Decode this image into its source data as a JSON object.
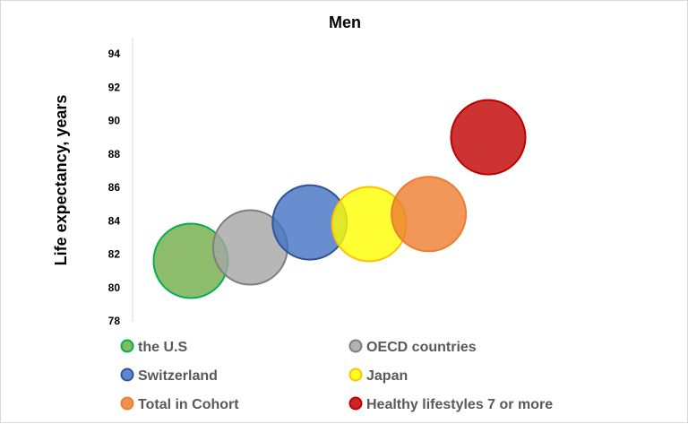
{
  "chart_data": {
    "type": "bubble",
    "title": "Men",
    "xlabel": "",
    "ylabel": "Life expectancy, years",
    "ylim": [
      78,
      94
    ],
    "yticks": [
      78,
      80,
      82,
      84,
      86,
      88,
      90,
      92,
      94
    ],
    "grid": false,
    "legend_position": "bottom",
    "series": [
      {
        "name": "the U.S",
        "x": 1,
        "y": 81.6,
        "fill": "#70ad47",
        "stroke": "#00b050"
      },
      {
        "name": "OECD countries",
        "x": 2,
        "y": 82.4,
        "fill": "#a5a5a5",
        "stroke": "#7f7f7f"
      },
      {
        "name": "Switzerland",
        "x": 3,
        "y": 83.9,
        "fill": "#4472c4",
        "stroke": "#2f5597"
      },
      {
        "name": "Japan",
        "x": 4,
        "y": 83.8,
        "fill": "#ffff00",
        "stroke": "#ffc000"
      },
      {
        "name": "Total in Cohort",
        "x": 5,
        "y": 84.4,
        "fill": "#ed7d31",
        "stroke": "#ed7d31"
      },
      {
        "name": "Healthy lifestyles 7 or more",
        "x": 6,
        "y": 89.0,
        "fill": "#c00000",
        "stroke": "#c00000"
      }
    ]
  }
}
